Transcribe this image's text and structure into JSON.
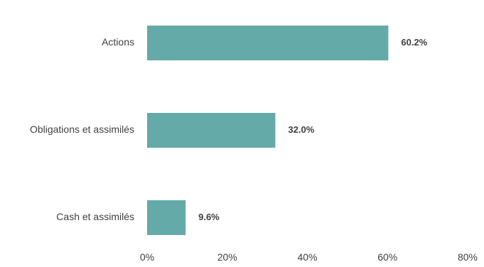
{
  "chart_data": {
    "type": "bar",
    "orientation": "horizontal",
    "categories": [
      "Actions",
      "Obligations et assimilés",
      "Cash et assimilés"
    ],
    "values": [
      60.2,
      32.0,
      9.6
    ],
    "data_labels": [
      "60.2%",
      "32.0%",
      "9.6%"
    ],
    "xlim": [
      0,
      80
    ],
    "x_ticks": [
      0,
      20,
      40,
      60,
      80
    ],
    "x_tick_labels": [
      "0%",
      "20%",
      "40%",
      "60%",
      "80%"
    ],
    "title": "",
    "xlabel": "",
    "ylabel": "",
    "grid": false,
    "legend": "none",
    "bar_color": "#64AAA8"
  }
}
